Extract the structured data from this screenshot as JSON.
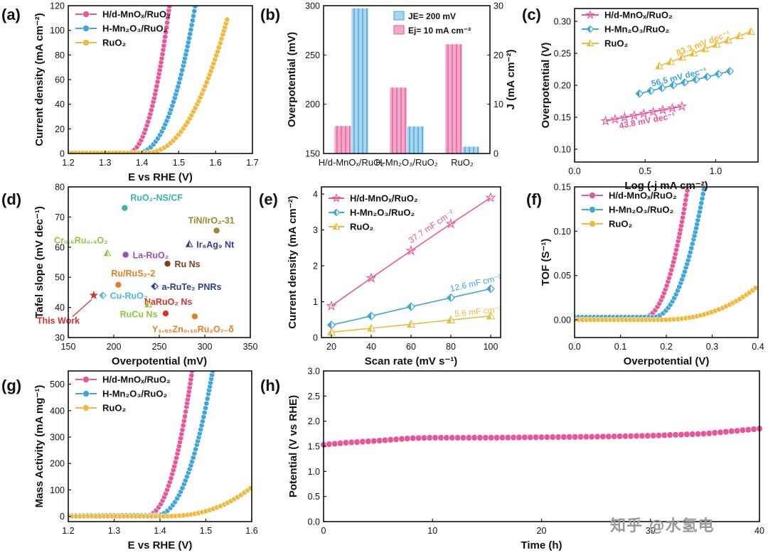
{
  "watermark": "知乎 @水氢电",
  "colors": {
    "pink": "#e8569a",
    "blue": "#3ea6d8",
    "gold": "#f0b93c",
    "green": "#8bc63f",
    "teal": "#36b4b4",
    "purple": "#9b4fb0",
    "brown": "#8b3a1e",
    "orange": "#e77d22",
    "navy": "#2c3e8f",
    "red": "#d7332b",
    "olive": "#9a8a2c",
    "cyan": "#4fb9d8"
  },
  "chart_data": [
    {
      "id": "a",
      "panel": "(a)",
      "type": "line",
      "xlabel": "E vs RHE (V)",
      "ylabel": "Current density (mA cm⁻²)",
      "xlim": [
        1.2,
        1.7
      ],
      "ylim": [
        0,
        120
      ],
      "xticks": [
        "1.2",
        "1.3",
        "1.4",
        "1.5",
        "1.6",
        "1.7"
      ],
      "yticks": [
        "0",
        "20",
        "40",
        "60",
        "80",
        "100",
        "120"
      ],
      "legend_pos": "top-left",
      "series": [
        {
          "name": "H/d-MnOₓ/RuO₂",
          "color": "pink",
          "onset": 1.36,
          "end": 1.475,
          "scale": 120,
          "pow": 2.2
        },
        {
          "name": "H-Mn₂O₃/RuO₂",
          "color": "blue",
          "onset": 1.385,
          "end": 1.545,
          "scale": 120,
          "pow": 2.3
        },
        {
          "name": "RuO₂",
          "color": "gold",
          "onset": 1.41,
          "end": 1.632,
          "scale": 109,
          "pow": 2.2
        }
      ]
    },
    {
      "id": "b",
      "panel": "(b)",
      "type": "bar",
      "ylabel": "Overpotential (mV)",
      "ylabel2": "J (mA cm⁻²)",
      "categories": [
        "H/d-MnOₓ/RuO₂",
        "H-Mn₂O₃/RuO₂",
        "RuO₂"
      ],
      "ylim": [
        150,
        300
      ],
      "ylim2": [
        0,
        30
      ],
      "yticks": [
        "150",
        "200",
        "250",
        "300"
      ],
      "yticks2": [
        "0",
        "10",
        "20",
        "30"
      ],
      "legend_pos": "top-right",
      "series": [
        {
          "name": "Ej= 10 mA cm⁻²",
          "color": "pink",
          "values": [
            178,
            217,
            261
          ],
          "axis": "left"
        },
        {
          "name": "JE= 200 mV",
          "color": "blue",
          "values": [
            29.5,
            5.5,
            1.4
          ],
          "axis": "right"
        }
      ]
    },
    {
      "id": "c",
      "panel": "(c)",
      "type": "line",
      "xlabel": "Log (-j mA cm⁻²)",
      "ylabel": "Overpotential (V)",
      "xlim": [
        0.0,
        1.3
      ],
      "ylim": [
        0.08,
        0.32
      ],
      "xticks": [
        "0.0",
        "0.5",
        "1.0"
      ],
      "yticks": [
        "0.10",
        "0.15",
        "0.20",
        "0.25",
        "0.30"
      ],
      "legend_pos": "top-left",
      "series": [
        {
          "name": "H/d-MnOₓ/RuO₂",
          "color": "pink",
          "x0": 0.22,
          "x1": 0.76,
          "y0": 0.144,
          "y1": 0.167,
          "n": 9,
          "label": "43.8 mV dec⁻¹"
        },
        {
          "name": "H-Mn₂O₃/RuO₂",
          "color": "blue",
          "x0": 0.46,
          "x1": 1.1,
          "y0": 0.187,
          "y1": 0.222,
          "n": 9,
          "label": "56.5 mV dec⁻¹"
        },
        {
          "name": "RuO₂",
          "color": "gold",
          "x0": 0.6,
          "x1": 1.25,
          "y0": 0.23,
          "y1": 0.284,
          "n": 9,
          "label": "83.3 mV dec⁻¹"
        }
      ]
    },
    {
      "id": "d",
      "panel": "(d)",
      "type": "scatter",
      "xlabel": "Overpotential (mV)",
      "ylabel": "Tafel slope (mV dec⁻¹)",
      "xlim": [
        150,
        350
      ],
      "ylim": [
        30,
        80
      ],
      "xticks": [
        "150",
        "200",
        "250",
        "300",
        "350"
      ],
      "yticks": [
        "30",
        "40",
        "50",
        "60",
        "70",
        "80"
      ],
      "points": [
        {
          "label": "RuO₂-NS/CF",
          "x": 212,
          "y": 73,
          "color": "teal"
        },
        {
          "label": "TiN/IrO₂-31",
          "x": 313,
          "y": 65.5,
          "color": "olive"
        },
        {
          "label": "Cr₀.₆Ru₀.₄O₂",
          "x": 193,
          "y": 58,
          "color": "green"
        },
        {
          "label": "La-RuO₂",
          "x": 213,
          "y": 57.5,
          "color": "purple"
        },
        {
          "label": "Ir₆Ag₉ Nt",
          "x": 283,
          "y": 61,
          "color": "navy"
        },
        {
          "label": "Ru Ns",
          "x": 259,
          "y": 54.5,
          "color": "brown"
        },
        {
          "label": "Ru/RuS₂-2",
          "x": 205,
          "y": 47.5,
          "color": "orange"
        },
        {
          "label": "a-RuTe₂ PNRs",
          "x": 245,
          "y": 47,
          "color": "navy"
        },
        {
          "label": "Cu-RuO₂",
          "x": 188,
          "y": 44,
          "color": "cyan"
        },
        {
          "label": "NaRuO₂ Ns",
          "x": 257,
          "y": 38,
          "color": "red"
        },
        {
          "label": "RuCu Ns",
          "x": 238,
          "y": 41,
          "color": "green"
        },
        {
          "label": "Y₁.₈₅Zn₀.₁₅Ru₂O₇₋δ",
          "x": 289,
          "y": 37,
          "color": "orange"
        },
        {
          "label": "This Work",
          "x": 178,
          "y": 44,
          "color": "red"
        }
      ]
    },
    {
      "id": "e",
      "panel": "(e)",
      "type": "line",
      "xlabel": "Scan rate (mV s⁻¹)",
      "ylabel": "Current density (mA cm⁻²)",
      "xlim": [
        15,
        105
      ],
      "ylim": [
        0,
        4.2
      ],
      "xticks": [
        "20",
        "40",
        "60",
        "80",
        "100"
      ],
      "yticks": [
        "0",
        "1",
        "2",
        "3",
        "4"
      ],
      "x": [
        20,
        40,
        60,
        80,
        100
      ],
      "legend_pos": "top-left",
      "series": [
        {
          "name": "H/d-MnOₓ/RuO₂",
          "color": "pink",
          "values": [
            0.88,
            1.66,
            2.42,
            3.17,
            3.9
          ],
          "label": "37.7 mF cm⁻²"
        },
        {
          "name": "H-Mn₂O₃/RuO₂",
          "color": "blue",
          "values": [
            0.35,
            0.6,
            0.86,
            1.11,
            1.36
          ],
          "label": "12.6 mF cm⁻²"
        },
        {
          "name": "RuO₂",
          "color": "gold",
          "values": [
            0.15,
            0.26,
            0.37,
            0.49,
            0.6
          ],
          "label": "5.6 mF cm⁻²"
        }
      ]
    },
    {
      "id": "f",
      "panel": "(f)",
      "type": "line",
      "xlabel": "Overpotential (V)",
      "ylabel": "TOF (S⁻¹)",
      "xlim": [
        0.0,
        0.4
      ],
      "ylim": [
        -0.02,
        0.15
      ],
      "xticks": [
        "0.0",
        "0.1",
        "0.2",
        "0.3",
        "0.4"
      ],
      "yticks": [
        "0.00",
        "0.05",
        "0.10",
        "0.15"
      ],
      "legend_pos": "top-left",
      "series": [
        {
          "name": "H/d-MnOₓ/RuO₂",
          "color": "pink",
          "onset": 0.15,
          "end": 0.247,
          "base": 0.003,
          "scale": 0.147,
          "pow": 2.2
        },
        {
          "name": "H-Mn₂O₃/RuO₂",
          "color": "blue",
          "onset": 0.17,
          "end": 0.283,
          "base": 0.003,
          "scale": 0.147,
          "pow": 2.2
        },
        {
          "name": "RuO₂",
          "color": "gold",
          "onset": 0.18,
          "end": 0.4,
          "base": 0.0,
          "scale": 0.038,
          "pow": 2.4
        }
      ]
    },
    {
      "id": "g",
      "panel": "(g)",
      "type": "line",
      "xlabel": "E vs RHE (V)",
      "ylabel": "Mass Activity (mA mg⁻¹)",
      "xlim": [
        1.2,
        1.6
      ],
      "ylim": [
        -20,
        550
      ],
      "xticks": [
        "1.2",
        "1.3",
        "1.4",
        "1.5",
        "1.6"
      ],
      "yticks": [
        "0",
        "100",
        "200",
        "300",
        "400",
        "500"
      ],
      "legend_pos": "top-left",
      "series": [
        {
          "name": "H/d-MnOₓ/RuO₂",
          "color": "pink",
          "onset": 1.37,
          "end": 1.47,
          "base": 3,
          "scale": 547,
          "pow": 2.2
        },
        {
          "name": "H-Mn₂O₃/RuO₂",
          "color": "blue",
          "onset": 1.39,
          "end": 1.515,
          "base": 3,
          "scale": 547,
          "pow": 2.2
        },
        {
          "name": "RuO₂",
          "color": "gold",
          "onset": 1.4,
          "end": 1.6,
          "base": 0,
          "scale": 110,
          "pow": 2.5
        }
      ]
    },
    {
      "id": "h",
      "panel": "(h)",
      "type": "line",
      "xlabel": "Time (h)",
      "ylabel": "Potential (V vs RHE)",
      "xlim": [
        0,
        40
      ],
      "ylim": [
        0.0,
        3.0
      ],
      "xticks": [
        "0",
        "10",
        "20",
        "30",
        "40"
      ],
      "yticks": [
        "0.0",
        "0.5",
        "1.0",
        "1.5",
        "2.0",
        "2.5",
        "3.0"
      ],
      "series": [
        {
          "name": "H/d-MnOₓ/RuO₂",
          "color": "pink",
          "x": [
            0,
            2,
            5,
            8,
            10,
            15,
            20,
            25,
            30,
            35,
            40
          ],
          "values": [
            1.53,
            1.57,
            1.61,
            1.66,
            1.67,
            1.67,
            1.68,
            1.69,
            1.71,
            1.75,
            1.85
          ]
        }
      ]
    }
  ]
}
